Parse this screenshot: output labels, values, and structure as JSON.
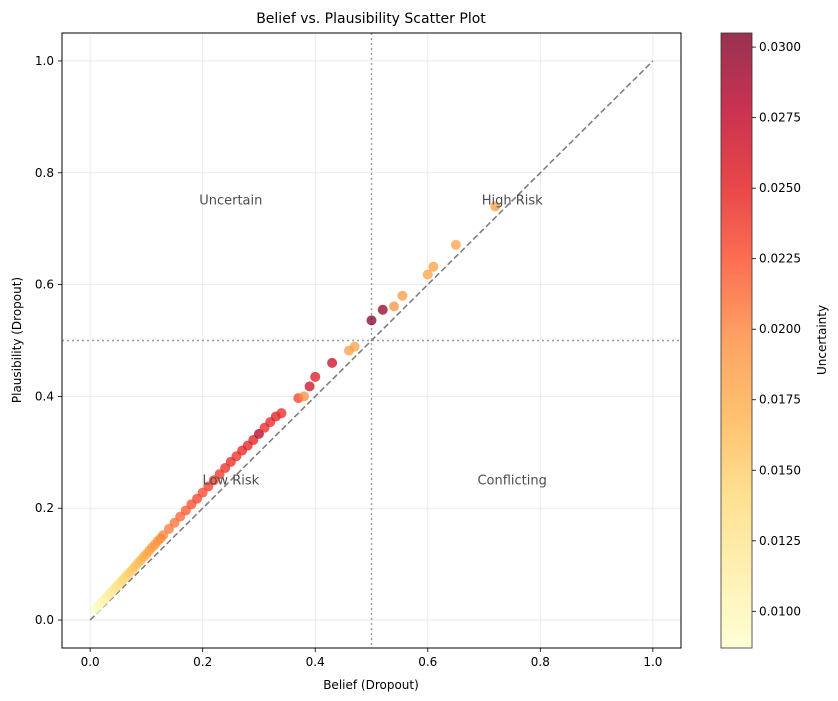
{
  "chart_data": {
    "type": "scatter",
    "title": "Belief vs. Plausibility Scatter Plot",
    "xlabel": "Belief (Dropout)",
    "ylabel": "Plausibility (Dropout)",
    "xlim": [
      -0.05,
      1.05
    ],
    "ylim": [
      -0.05,
      1.05
    ],
    "xticks": [
      0.0,
      0.2,
      0.4,
      0.6,
      0.8,
      1.0
    ],
    "yticks": [
      0.0,
      0.2,
      0.4,
      0.6,
      0.8,
      1.0
    ],
    "xtick_labels": [
      "0.0",
      "0.2",
      "0.4",
      "0.6",
      "0.8",
      "1.0"
    ],
    "ytick_labels": [
      "0.0",
      "0.2",
      "0.4",
      "0.6",
      "0.8",
      "1.0"
    ],
    "grid": true,
    "reference_lines": {
      "diagonal": [
        [
          0,
          0
        ],
        [
          1,
          1
        ]
      ],
      "vertical_x": 0.5,
      "horizontal_y": 0.5
    },
    "annotations": [
      {
        "text": "Uncertain",
        "x": 0.25,
        "y": 0.75
      },
      {
        "text": "High Risk",
        "x": 0.75,
        "y": 0.75
      },
      {
        "text": "Low Risk",
        "x": 0.25,
        "y": 0.25
      },
      {
        "text": "Conflicting",
        "x": 0.75,
        "y": 0.25
      }
    ],
    "colorbar": {
      "label": "Uncertainty",
      "range": [
        0.0087,
        0.0305
      ],
      "ticks": [
        0.01,
        0.0125,
        0.015,
        0.0175,
        0.02,
        0.0225,
        0.025,
        0.0275,
        0.03
      ],
      "tick_labels": [
        "0.0100",
        "0.0125",
        "0.0150",
        "0.0175",
        "0.0200",
        "0.0225",
        "0.0250",
        "0.0275",
        "0.0300"
      ],
      "colormap": "YlOrRd",
      "stops": [
        "#ffffcc",
        "#ffeda0",
        "#fed976",
        "#feb24c",
        "#fd8d3c",
        "#fc4e2a",
        "#e31a1c",
        "#bd0026",
        "#800026"
      ]
    },
    "points": [
      [
        0.01,
        0.02,
        0.009
      ],
      [
        0.015,
        0.026,
        0.0095
      ],
      [
        0.02,
        0.031,
        0.01
      ],
      [
        0.025,
        0.036,
        0.0105
      ],
      [
        0.03,
        0.042,
        0.011
      ],
      [
        0.035,
        0.047,
        0.0115
      ],
      [
        0.04,
        0.052,
        0.012
      ],
      [
        0.045,
        0.058,
        0.0125
      ],
      [
        0.05,
        0.063,
        0.013
      ],
      [
        0.055,
        0.069,
        0.0135
      ],
      [
        0.06,
        0.074,
        0.014
      ],
      [
        0.065,
        0.08,
        0.0145
      ],
      [
        0.07,
        0.085,
        0.015
      ],
      [
        0.075,
        0.09,
        0.0152
      ],
      [
        0.08,
        0.096,
        0.0158
      ],
      [
        0.085,
        0.102,
        0.016
      ],
      [
        0.09,
        0.107,
        0.0165
      ],
      [
        0.095,
        0.113,
        0.017
      ],
      [
        0.1,
        0.118,
        0.0175
      ],
      [
        0.105,
        0.124,
        0.018
      ],
      [
        0.11,
        0.13,
        0.0185
      ],
      [
        0.115,
        0.135,
        0.0188
      ],
      [
        0.12,
        0.141,
        0.019
      ],
      [
        0.125,
        0.146,
        0.0195
      ],
      [
        0.13,
        0.152,
        0.02
      ],
      [
        0.14,
        0.163,
        0.0205
      ],
      [
        0.15,
        0.174,
        0.021
      ],
      [
        0.16,
        0.185,
        0.0215
      ],
      [
        0.17,
        0.196,
        0.022
      ],
      [
        0.18,
        0.207,
        0.0225
      ],
      [
        0.19,
        0.217,
        0.0232
      ],
      [
        0.2,
        0.228,
        0.023
      ],
      [
        0.21,
        0.239,
        0.0235
      ],
      [
        0.22,
        0.25,
        0.024
      ],
      [
        0.23,
        0.261,
        0.0238
      ],
      [
        0.24,
        0.272,
        0.0243
      ],
      [
        0.25,
        0.283,
        0.0245
      ],
      [
        0.26,
        0.293,
        0.0242
      ],
      [
        0.27,
        0.303,
        0.0248
      ],
      [
        0.28,
        0.312,
        0.025
      ],
      [
        0.29,
        0.322,
        0.0252
      ],
      [
        0.3,
        0.333,
        0.0282
      ],
      [
        0.31,
        0.344,
        0.0246
      ],
      [
        0.32,
        0.354,
        0.0249
      ],
      [
        0.33,
        0.364,
        0.0251
      ],
      [
        0.34,
        0.37,
        0.0244
      ],
      [
        0.37,
        0.397,
        0.0233
      ],
      [
        0.38,
        0.4,
        0.0195
      ],
      [
        0.39,
        0.418,
        0.0268
      ],
      [
        0.4,
        0.435,
        0.0255
      ],
      [
        0.43,
        0.46,
        0.027
      ],
      [
        0.46,
        0.482,
        0.0185
      ],
      [
        0.47,
        0.489,
        0.0182
      ],
      [
        0.5,
        0.536,
        0.0305
      ],
      [
        0.52,
        0.555,
        0.0298
      ],
      [
        0.54,
        0.561,
        0.0192
      ],
      [
        0.555,
        0.58,
        0.0188
      ],
      [
        0.6,
        0.618,
        0.018
      ],
      [
        0.61,
        0.632,
        0.0184
      ],
      [
        0.65,
        0.671,
        0.0182
      ],
      [
        0.72,
        0.74,
        0.0186
      ]
    ]
  }
}
